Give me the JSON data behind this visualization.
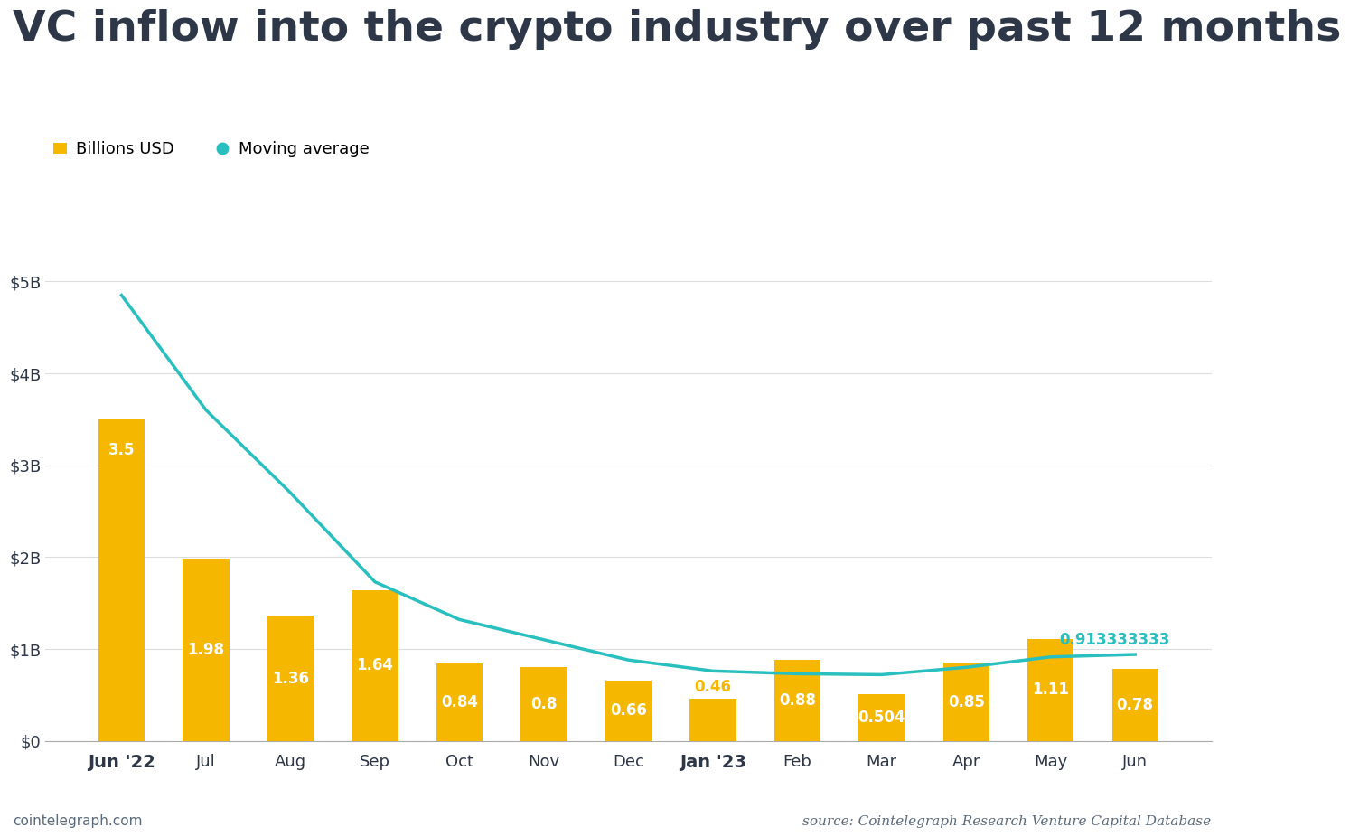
{
  "title": "VC inflow into the crypto industry over past 12 months",
  "categories": [
    "Jun '22",
    "Jul",
    "Aug",
    "Sep",
    "Oct",
    "Nov",
    "Dec",
    "Jan '23",
    "Feb",
    "Mar",
    "Apr",
    "May",
    "Jun"
  ],
  "values": [
    3.5,
    1.98,
    1.36,
    1.64,
    0.84,
    0.8,
    0.66,
    0.46,
    0.88,
    0.504,
    0.85,
    1.11,
    0.78
  ],
  "bar_color": "#F5B700",
  "moving_avg": [
    4.85,
    3.6,
    2.7,
    1.73,
    1.32,
    1.1,
    0.88,
    0.76,
    0.73,
    0.72,
    0.8,
    0.913333333,
    0.94
  ],
  "moving_avg_color": "#2ABFBF",
  "moving_avg_label_value": "0.913333333",
  "ylabel_ticks": [
    "$0",
    "$1B",
    "$2B",
    "$3B",
    "$4B",
    "$5B"
  ],
  "ytick_values": [
    0,
    1,
    2,
    3,
    4,
    5
  ],
  "ylim": [
    0,
    5.5
  ],
  "legend_bar_label": "Billions USD",
  "legend_line_label": "Moving average",
  "source_text": "source: Cointelegraph Research Venture Capital Database",
  "footer_text": "cointelegraph.com",
  "background_color": "#FFFFFF",
  "text_color": "#2d3748",
  "title_fontsize": 34,
  "axis_fontsize": 13,
  "bar_label_fontsize": 12,
  "bold_categories": [
    "Jun '22",
    "Jan '23"
  ],
  "grid_color": "#DDDDDD",
  "label_threshold": 0.5
}
